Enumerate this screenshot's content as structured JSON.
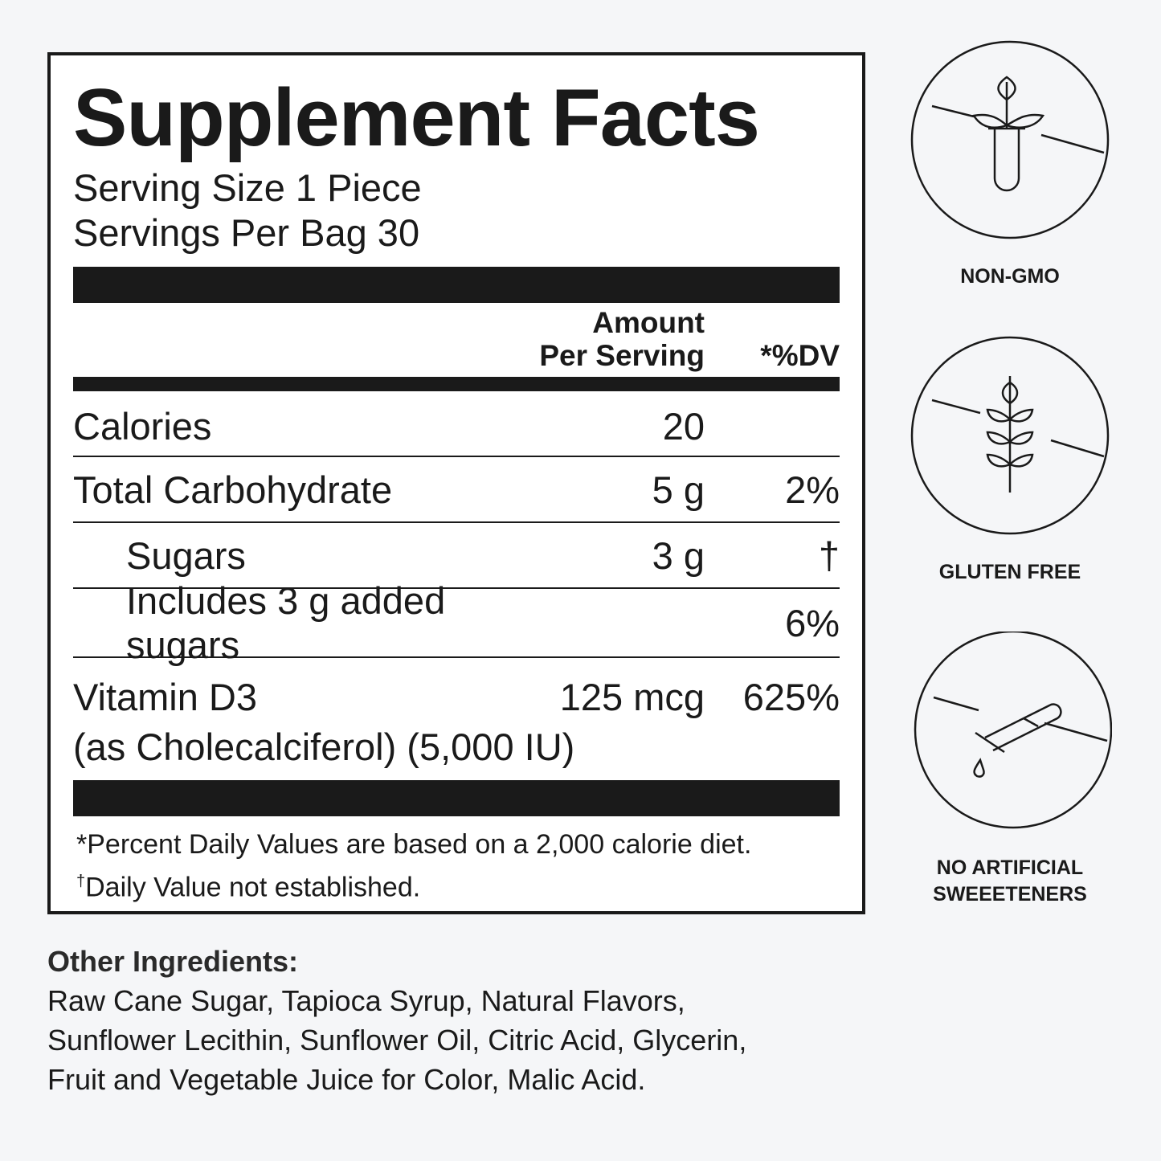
{
  "label": {
    "title": "Supplement Facts",
    "serving_size": "Serving Size 1 Piece",
    "servings_per": "Servings Per Bag 30",
    "header_amount_1": "Amount",
    "header_amount_2": "Per Serving",
    "header_dv": "*%DV",
    "rows": [
      {
        "name": "Calories",
        "amount": "20",
        "dv": ""
      },
      {
        "name": "Total Carbohydrate",
        "amount": "5 g",
        "dv": "2%"
      },
      {
        "name": "Sugars",
        "amount": "3 g",
        "dv": "†"
      },
      {
        "name": "Includes 3 g added sugars",
        "amount": "",
        "dv": "6%"
      }
    ],
    "vitamin": {
      "name": "Vitamin D3",
      "amount": "125 mcg",
      "dv": "625%",
      "sub": "(as Cholecalciferol) (5,000 IU)"
    },
    "footnote_1": "*Percent Daily Values are based on a 2,000 calorie diet.",
    "footnote_2_mark": "†",
    "footnote_2": "Daily Value not established."
  },
  "other": {
    "heading": "Other Ingredients:",
    "lines": [
      "Raw Cane Sugar, Tapioca Syrup, Natural Flavors,",
      "Sunflower Lecithin, Sunflower Oil, Citric Acid, Glycerin,",
      "Fruit and Vegetable Juice for Color, Malic Acid."
    ]
  },
  "badges": [
    {
      "icon": "non-gmo-plant-icon",
      "label": "NON-GMO"
    },
    {
      "icon": "wheat-icon",
      "label": "GLUTEN FREE"
    },
    {
      "icon": "dropper-icon",
      "label_1": "NO ARTIFICIAL",
      "label_2": "SWEEETENERS"
    }
  ]
}
